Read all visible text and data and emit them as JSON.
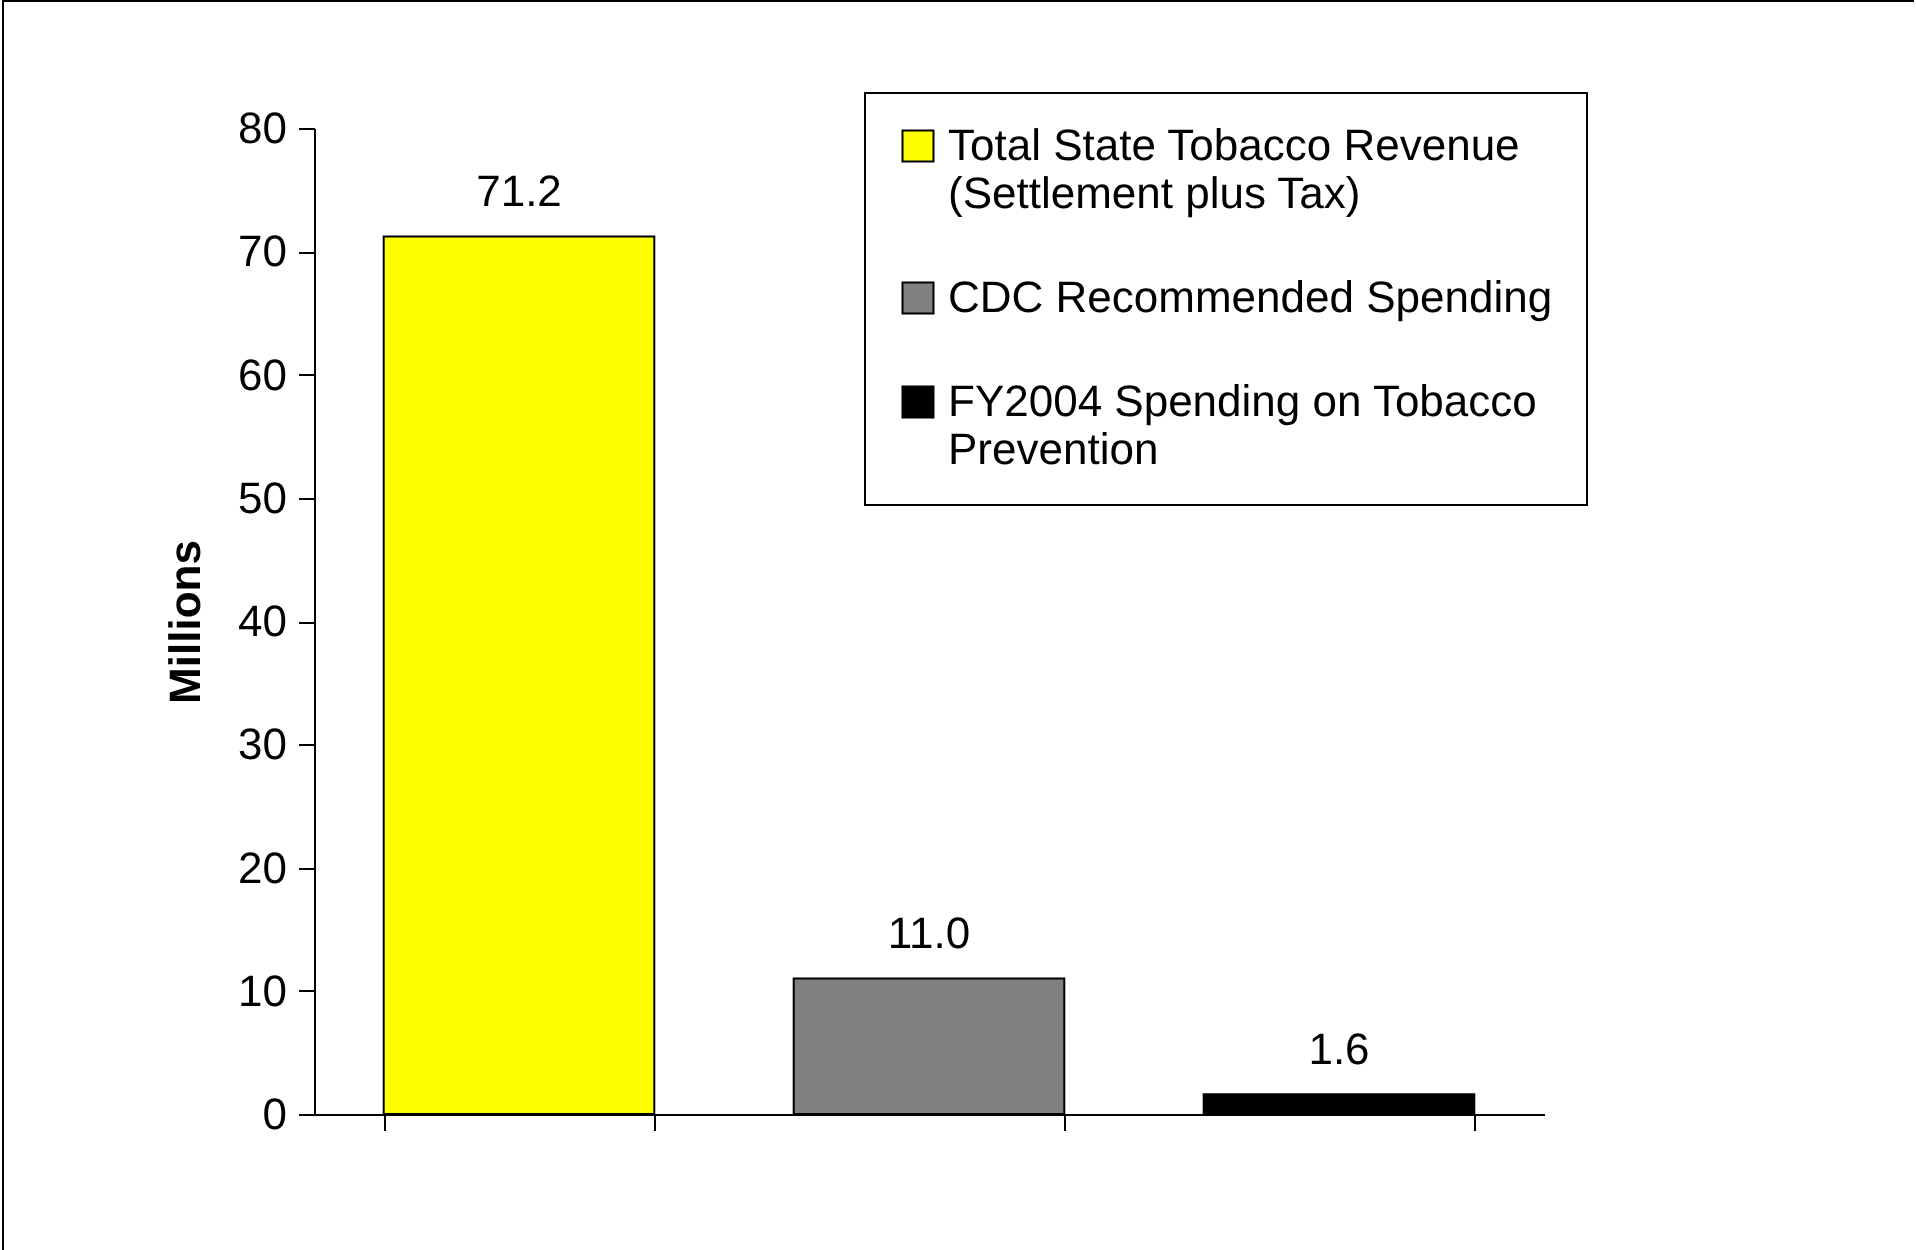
{
  "chart_data": {
    "type": "bar",
    "ylabel": "Millions",
    "categories": [
      null,
      null,
      null
    ],
    "series": [
      {
        "name": "Total State Tobacco Revenue (Settlement plus Tax)",
        "color": "#ffff00",
        "values": [
          71.2,
          null,
          null
        ],
        "value_labels": [
          "71.2",
          null,
          null
        ]
      },
      {
        "name": "CDC Recommended Spending",
        "color": "#808080",
        "values": [
          null,
          11.0,
          null
        ],
        "value_labels": [
          null,
          "11.0",
          null
        ]
      },
      {
        "name": "FY2004 Spending on Tobacco Prevention",
        "color": "#000000",
        "values": [
          null,
          null,
          1.6
        ],
        "value_labels": [
          null,
          null,
          "1.6"
        ]
      }
    ],
    "ylim": [
      0,
      80
    ],
    "yticks": [
      0,
      10,
      20,
      30,
      40,
      50,
      60,
      70,
      80
    ],
    "legend": "top right",
    "grid": false
  }
}
